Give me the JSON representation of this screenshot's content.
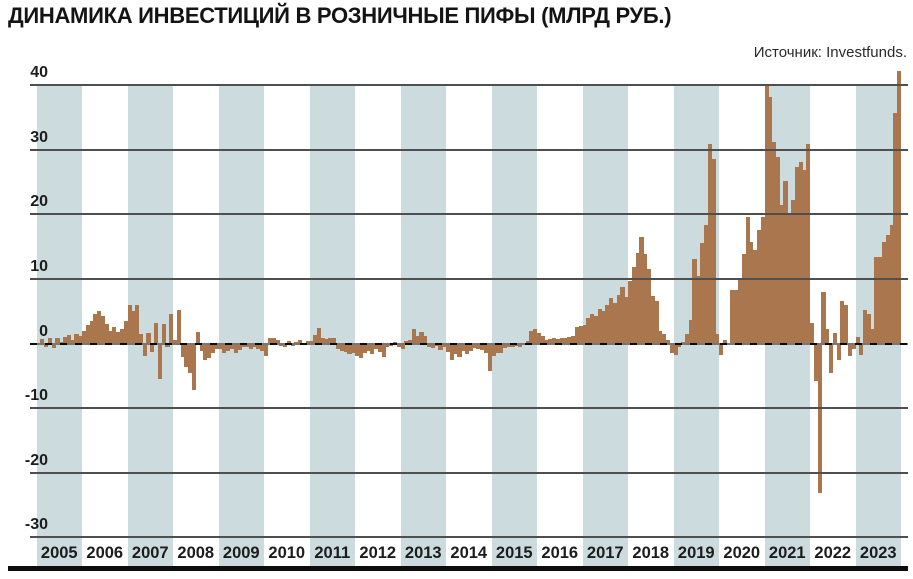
{
  "page": {
    "title": "ДИНАМИКА ИНВЕСТИЦИЙ В РОЗНИЧНЫЕ ПИФЫ (МЛРД РУБ.)",
    "source": "Источник: Investfunds."
  },
  "chart_data": {
    "type": "bar",
    "title": "ДИНАМИКА ИНВЕСТИЦИЙ В РОЗНИЧНЫЕ ПИФЫ (МЛРД РУБ.)",
    "source": "Источник: Investfunds.",
    "xlabel": "",
    "ylabel": "млрд руб.",
    "ylim": [
      -30,
      42.5
    ],
    "yticks": [
      40,
      30,
      20,
      10,
      0,
      -10,
      -20,
      -30
    ],
    "grid": true,
    "legend": "none",
    "colors": {
      "bar": "#a9764e",
      "band": "#ccdbdd",
      "gridline": "#4f4f4f",
      "baseline": "#0d0d0d"
    },
    "granularity": "monthly",
    "years": [
      {
        "year": "2005",
        "values": [
          -0.3,
          0.7,
          -0.5,
          0.8,
          -0.7,
          0.9,
          0.3,
          1.0,
          1.3,
          0.5,
          1.5,
          1.2
        ]
      },
      {
        "year": "2006",
        "values": [
          2.0,
          2.8,
          3.5,
          4.5,
          5.0,
          4.2,
          3.0,
          2.0,
          2.5,
          1.8,
          2.2,
          3.5
        ]
      },
      {
        "year": "2007",
        "values": [
          5.9,
          5.0,
          5.9,
          1.5,
          -2.0,
          1.6,
          -1.3,
          3.2,
          -5.5,
          3.0,
          -0.5,
          4.5
        ]
      },
      {
        "year": "2008",
        "values": [
          0.5,
          5.2,
          -2.1,
          -3.6,
          -4.6,
          -7.2,
          1.8,
          -1.2,
          -2.6,
          -2.2,
          -1.5,
          -0.8
        ]
      },
      {
        "year": "2009",
        "values": [
          -0.9,
          -1.5,
          -1.2,
          -0.8,
          -1.5,
          -1.0,
          -0.6,
          -0.5,
          -0.8,
          -0.6,
          -0.9,
          -1.2
        ]
      },
      {
        "year": "2010",
        "values": [
          -2.0,
          0.8,
          0.9,
          0.6,
          -0.4,
          -0.5,
          0.4,
          -0.4,
          0.3,
          0.5,
          -0.3,
          0.4
        ]
      },
      {
        "year": "2011",
        "values": [
          0.4,
          1.3,
          2.4,
          0.9,
          0.7,
          0.9,
          0.8,
          -0.9,
          -1.1,
          -1.3,
          -1.6,
          -1.4
        ]
      },
      {
        "year": "2012",
        "values": [
          -1.9,
          -2.3,
          -1.4,
          -1.1,
          -1.6,
          -0.9,
          -1.3,
          -2.1,
          -0.6,
          -0.4,
          0.3,
          -0.6
        ]
      },
      {
        "year": "2013",
        "values": [
          -0.8,
          0.4,
          0.6,
          2.2,
          1.1,
          1.8,
          1.2,
          -0.5,
          -0.7,
          -0.4,
          -1.0,
          -0.6
        ]
      },
      {
        "year": "2014",
        "values": [
          -1.3,
          -2.5,
          -1.6,
          -2.1,
          -1.1,
          -1.6,
          -1.2,
          -0.7,
          -0.9,
          -1.0,
          -1.4,
          -4.3
        ]
      },
      {
        "year": "2015",
        "values": [
          -1.9,
          -1.4,
          -1.5,
          -0.7,
          -0.6,
          -0.5,
          -0.4,
          -0.6,
          -0.3,
          0.4,
          2.0,
          2.3
        ]
      },
      {
        "year": "2016",
        "values": [
          1.7,
          1.2,
          0.5,
          0.7,
          0.8,
          0.7,
          0.9,
          0.8,
          1.0,
          1.2,
          2.5,
          2.7
        ]
      },
      {
        "year": "2017",
        "values": [
          2.8,
          4.0,
          4.5,
          4.3,
          5.3,
          5.0,
          6.0,
          7.0,
          6.3,
          7.5,
          8.8,
          7.2
        ]
      },
      {
        "year": "2018",
        "values": [
          9.7,
          11.8,
          14.0,
          16.4,
          13.8,
          11.5,
          7.3,
          6.5,
          2.0,
          1.5,
          0.5,
          -1.5
        ]
      },
      {
        "year": "2019",
        "values": [
          -1.8,
          -0.5,
          0.3,
          1.5,
          3.6,
          13.0,
          10.4,
          15.5,
          18.4,
          30.8,
          28.5,
          1.5
        ]
      },
      {
        "year": "2020",
        "values": [
          -1.8,
          0.5,
          -0.3,
          8.2,
          8.2,
          9.8,
          13.8,
          19.6,
          15.7,
          14.5,
          17.6,
          19.6
        ]
      },
      {
        "year": "2021",
        "values": [
          40.2,
          38.2,
          31.2,
          28.8,
          21.4,
          25.2,
          19.8,
          22.2,
          27.3,
          28.0,
          26.9,
          30.9
        ]
      },
      {
        "year": "2022",
        "values": [
          3.1,
          -5.8,
          -23.2,
          8.0,
          2.2,
          -4.5,
          1.6,
          -2.5,
          6.5,
          6.0,
          -2.0,
          -0.8
        ]
      },
      {
        "year": "2023",
        "values": [
          1.0,
          -1.8,
          5.2,
          4.6,
          2.3,
          13.4,
          13.4,
          15.7,
          16.8,
          18.3,
          35.7,
          42.2
        ]
      }
    ]
  }
}
